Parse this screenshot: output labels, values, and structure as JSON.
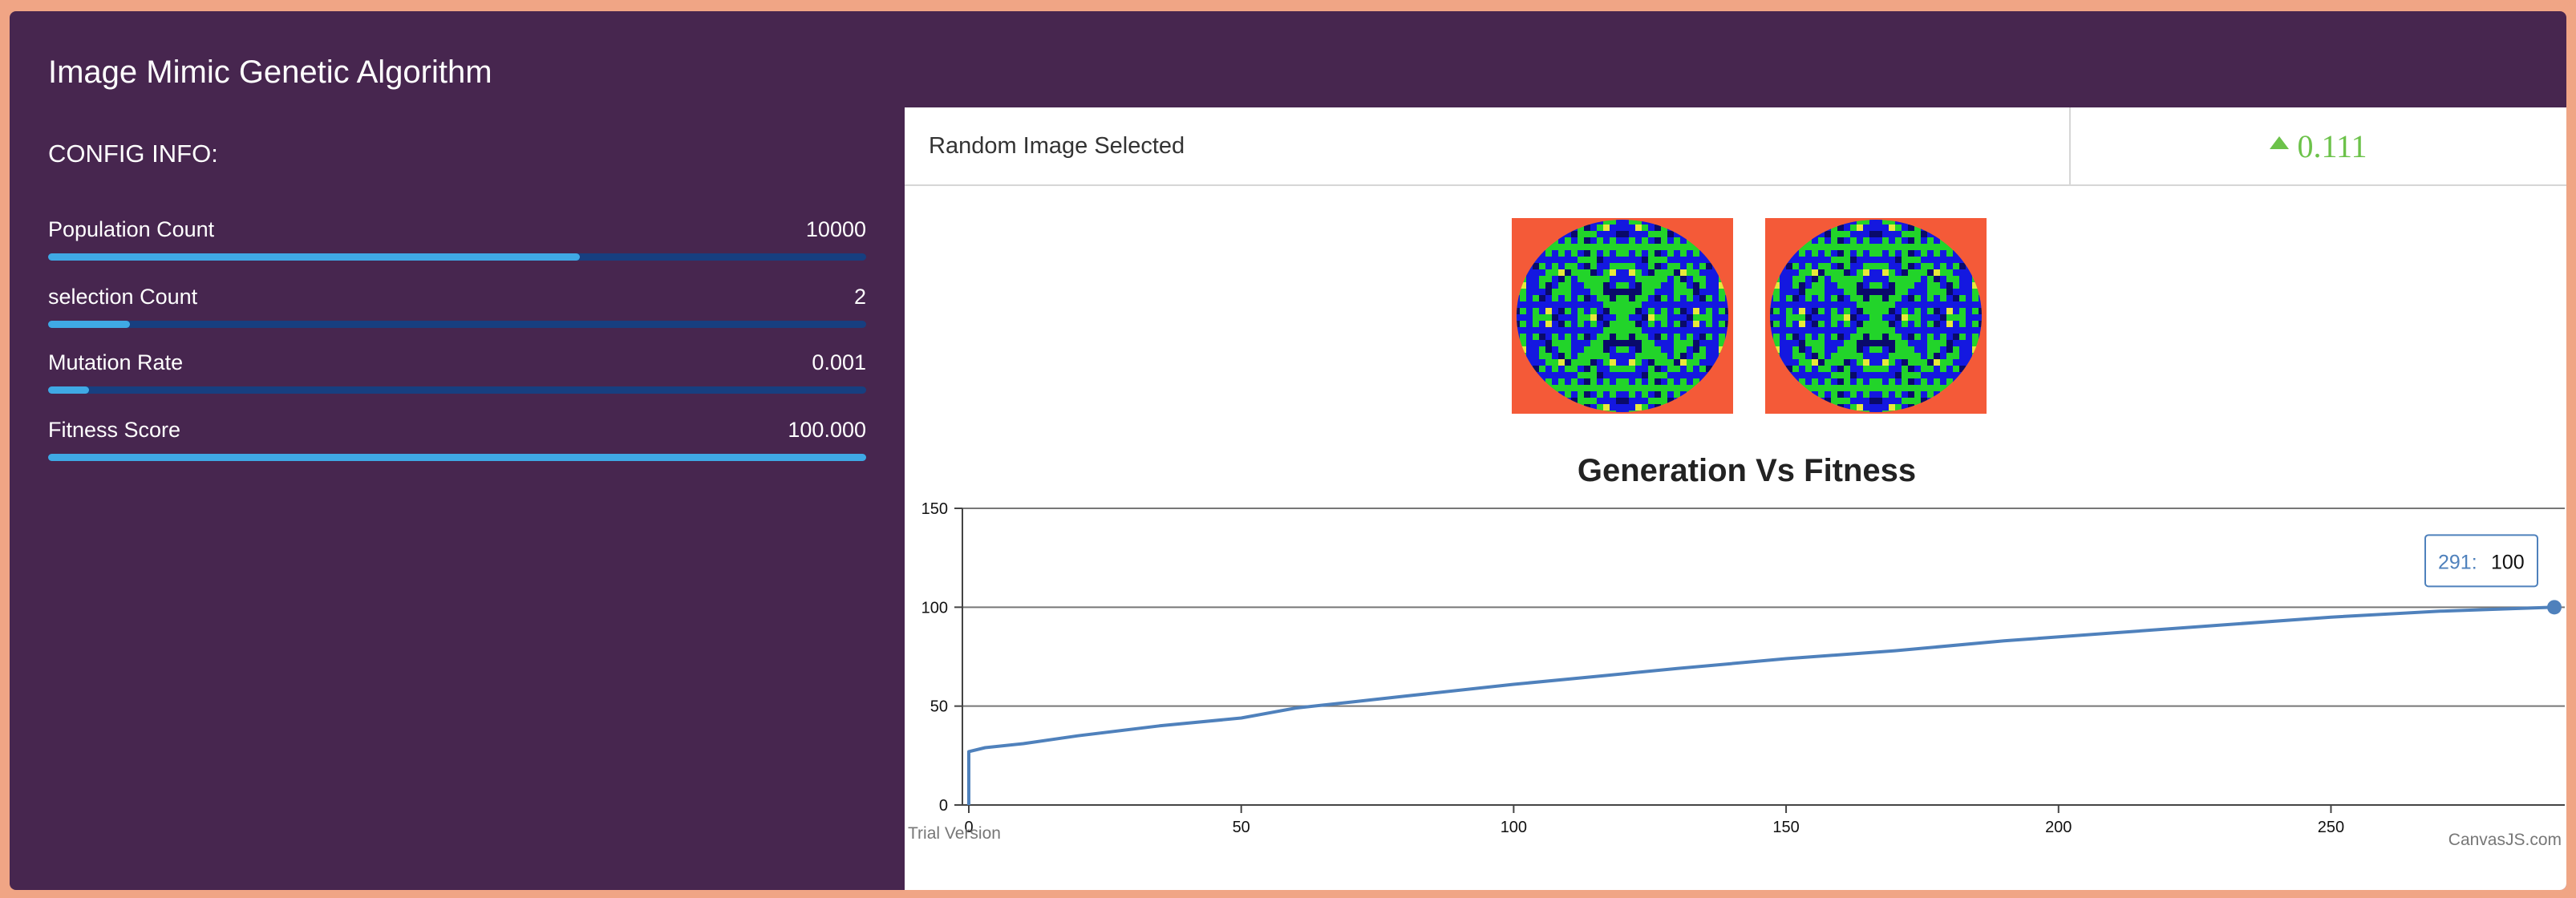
{
  "app": {
    "title": "Image Mimic Genetic Algorithm"
  },
  "config": {
    "title": "CONFIG INFO:",
    "items": [
      {
        "label": "Population Count",
        "value": "10000",
        "fill_fraction": 0.65
      },
      {
        "label": "selection Count",
        "value": "2",
        "fill_fraction": 0.1
      },
      {
        "label": "Mutation Rate",
        "value": "0.001",
        "fill_fraction": 0.05
      },
      {
        "label": "Fitness Score",
        "value": "100.000",
        "fill_fraction": 1.0
      }
    ]
  },
  "info": {
    "status_text": "Random Image Selected",
    "stat_value": "0.111",
    "stat_icon": "triangle-up-icon"
  },
  "colors": {
    "background": "#f0a585",
    "panel": "#47264f",
    "bar_track": "#173f80",
    "bar_fill": "#3fa9e5",
    "stat_green": "#6cc24a",
    "line": "#4f81bc"
  },
  "chart_data": {
    "type": "line",
    "title": "Generation Vs Fitness",
    "xlabel": "",
    "ylabel": "",
    "xlim": [
      0,
      291
    ],
    "ylim": [
      0,
      150
    ],
    "x_ticks": [
      0,
      50,
      100,
      150,
      200,
      250
    ],
    "y_ticks": [
      0,
      50,
      100,
      150
    ],
    "grid": true,
    "series": [
      {
        "x": [
          0,
          0,
          3,
          10,
          20,
          35,
          50,
          60,
          70,
          80,
          100,
          115,
          130,
          150,
          170,
          190,
          210,
          230,
          250,
          270,
          291
        ],
        "y": [
          0,
          27,
          29,
          31,
          35,
          40,
          44,
          49,
          52,
          55,
          61,
          65,
          69,
          74,
          78,
          83,
          87,
          91,
          95,
          98,
          100
        ]
      }
    ],
    "tooltip": {
      "x_label": "291:",
      "y_label": "100"
    },
    "watermark_left": "Trial Version",
    "watermark_right": "CanvasJS.com"
  }
}
